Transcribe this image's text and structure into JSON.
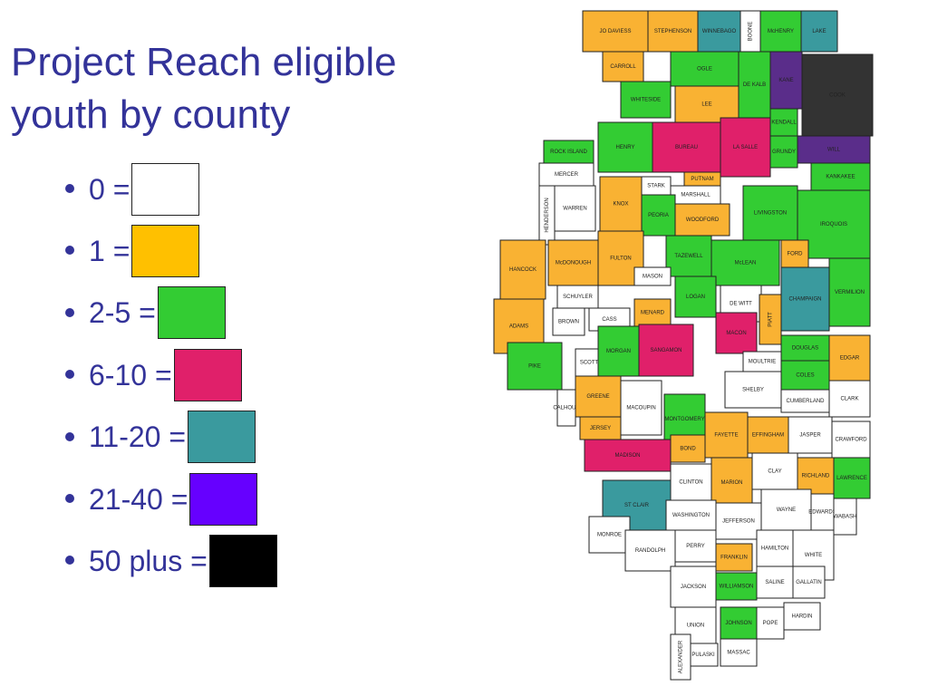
{
  "title": "Project Reach eligible youth by county",
  "legend": [
    {
      "label": "0 =",
      "color": "#ffffff"
    },
    {
      "label": "1 =",
      "color": "#ffc000"
    },
    {
      "label": "2-5 =",
      "color": "#33cc33"
    },
    {
      "label": "6-10 =",
      "color": "#e0206a"
    },
    {
      "label": "11-20 =",
      "color": "#3a9a9e"
    },
    {
      "label": "21-40 =",
      "color": "#6600ff"
    },
    {
      "label": "50 plus =",
      "color": "#000000"
    }
  ],
  "counties": [
    {
      "name": "JO DAVIESS",
      "color": "#f9b233"
    },
    {
      "name": "STEPHENSON",
      "color": "#f9b233"
    },
    {
      "name": "WINNEBAGO",
      "color": "#3a9a9e"
    },
    {
      "name": "BOONE",
      "color": "#ffffff"
    },
    {
      "name": "McHENRY",
      "color": "#33cc33"
    },
    {
      "name": "LAKE",
      "color": "#3a9a9e"
    },
    {
      "name": "CARROLL",
      "color": "#f9b233"
    },
    {
      "name": "OGLE",
      "color": "#33cc33"
    },
    {
      "name": "DE KALB",
      "color": "#33cc33"
    },
    {
      "name": "KANE",
      "color": "#5a2d8a"
    },
    {
      "name": "COOK",
      "color": "#333333"
    },
    {
      "name": "WHITESIDE",
      "color": "#33cc33"
    },
    {
      "name": "LEE",
      "color": "#f9b233"
    },
    {
      "name": "ROCK ISLAND",
      "color": "#33cc33"
    },
    {
      "name": "HENRY",
      "color": "#33cc33"
    },
    {
      "name": "BUREAU",
      "color": "#e0206a"
    },
    {
      "name": "LA SALLE",
      "color": "#e0206a"
    },
    {
      "name": "KENDALL",
      "color": "#33cc33"
    },
    {
      "name": "WILL",
      "color": "#5a2d8a"
    },
    {
      "name": "GRUNDY",
      "color": "#33cc33"
    },
    {
      "name": "MERCER",
      "color": "#ffffff"
    },
    {
      "name": "PUTNAM",
      "color": "#f9b233"
    },
    {
      "name": "KANKAKEE",
      "color": "#33cc33"
    },
    {
      "name": "KNOX",
      "color": "#f9b233"
    },
    {
      "name": "STARK",
      "color": "#ffffff"
    },
    {
      "name": "MARSHALL",
      "color": "#ffffff"
    },
    {
      "name": "WARREN",
      "color": "#ffffff"
    },
    {
      "name": "HENDERSON",
      "color": "#ffffff"
    },
    {
      "name": "PEORIA",
      "color": "#33cc33"
    },
    {
      "name": "WOODFORD",
      "color": "#f9b233"
    },
    {
      "name": "LIVINGSTON",
      "color": "#33cc33"
    },
    {
      "name": "IROQUOIS",
      "color": "#33cc33"
    },
    {
      "name": "HANCOCK",
      "color": "#f9b233"
    },
    {
      "name": "McDONOUGH",
      "color": "#f9b233"
    },
    {
      "name": "FULTON",
      "color": "#f9b233"
    },
    {
      "name": "TAZEWELL",
      "color": "#33cc33"
    },
    {
      "name": "McLEAN",
      "color": "#33cc33"
    },
    {
      "name": "FORD",
      "color": "#f9b233"
    },
    {
      "name": "VERMILION",
      "color": "#33cc33"
    },
    {
      "name": "MASON",
      "color": "#ffffff"
    },
    {
      "name": "CHAMPAIGN",
      "color": "#3a9a9e"
    },
    {
      "name": "ADAMS",
      "color": "#f9b233"
    },
    {
      "name": "SCHUYLER",
      "color": "#ffffff"
    },
    {
      "name": "BROWN",
      "color": "#ffffff"
    },
    {
      "name": "MENARD",
      "color": "#f9b233"
    },
    {
      "name": "LOGAN",
      "color": "#33cc33"
    },
    {
      "name": "DE WITT",
      "color": "#ffffff"
    },
    {
      "name": "CASS",
      "color": "#ffffff"
    },
    {
      "name": "PIATT",
      "color": "#f9b233"
    },
    {
      "name": "MACON",
      "color": "#e0206a"
    },
    {
      "name": "PIKE",
      "color": "#33cc33"
    },
    {
      "name": "SCOTT",
      "color": "#ffffff"
    },
    {
      "name": "MORGAN",
      "color": "#33cc33"
    },
    {
      "name": "SANGAMON",
      "color": "#e0206a"
    },
    {
      "name": "DOUGLAS",
      "color": "#33cc33"
    },
    {
      "name": "EDGAR",
      "color": "#f9b233"
    },
    {
      "name": "MOULTRIE",
      "color": "#ffffff"
    },
    {
      "name": "SHELBY",
      "color": "#ffffff"
    },
    {
      "name": "COLES",
      "color": "#33cc33"
    },
    {
      "name": "CALHOUN",
      "color": "#ffffff"
    },
    {
      "name": "GREENE",
      "color": "#f9b233"
    },
    {
      "name": "MACOUPIN",
      "color": "#ffffff"
    },
    {
      "name": "MONTGOMERY",
      "color": "#33cc33"
    },
    {
      "name": "CUMBERLAND",
      "color": "#ffffff"
    },
    {
      "name": "CLARK",
      "color": "#ffffff"
    },
    {
      "name": "JERSEY",
      "color": "#f9b233"
    },
    {
      "name": "FAYETTE",
      "color": "#f9b233"
    },
    {
      "name": "EFFINGHAM",
      "color": "#f9b233"
    },
    {
      "name": "JASPER",
      "color": "#ffffff"
    },
    {
      "name": "CRAWFORD",
      "color": "#ffffff"
    },
    {
      "name": "MADISON",
      "color": "#e0206a"
    },
    {
      "name": "BOND",
      "color": "#f9b233"
    },
    {
      "name": "CLAY",
      "color": "#ffffff"
    },
    {
      "name": "CLINTON",
      "color": "#ffffff"
    },
    {
      "name": "MARION",
      "color": "#f9b233"
    },
    {
      "name": "RICHLAND",
      "color": "#f9b233"
    },
    {
      "name": "LAWRENCE",
      "color": "#33cc33"
    },
    {
      "name": "ST CLAIR",
      "color": "#3a9a9e"
    },
    {
      "name": "WASHINGTON",
      "color": "#ffffff"
    },
    {
      "name": "JEFFERSON",
      "color": "#ffffff"
    },
    {
      "name": "WAYNE",
      "color": "#ffffff"
    },
    {
      "name": "EDWARDS",
      "color": "#ffffff"
    },
    {
      "name": "WABASH",
      "color": "#ffffff"
    },
    {
      "name": "MONROE",
      "color": "#ffffff"
    },
    {
      "name": "RANDOLPH",
      "color": "#ffffff"
    },
    {
      "name": "PERRY",
      "color": "#ffffff"
    },
    {
      "name": "FRANKLIN",
      "color": "#f9b233"
    },
    {
      "name": "HAMILTON",
      "color": "#ffffff"
    },
    {
      "name": "WHITE",
      "color": "#ffffff"
    },
    {
      "name": "JACKSON",
      "color": "#ffffff"
    },
    {
      "name": "WILLIAMSON",
      "color": "#33cc33"
    },
    {
      "name": "SALINE",
      "color": "#ffffff"
    },
    {
      "name": "GALLATIN",
      "color": "#ffffff"
    },
    {
      "name": "UNION",
      "color": "#ffffff"
    },
    {
      "name": "JOHNSON",
      "color": "#33cc33"
    },
    {
      "name": "POPE",
      "color": "#ffffff"
    },
    {
      "name": "HARDIN",
      "color": "#ffffff"
    },
    {
      "name": "PULASKI",
      "color": "#ffffff"
    },
    {
      "name": "MASSAC",
      "color": "#ffffff"
    },
    {
      "name": "ALEXANDER",
      "color": "#ffffff"
    }
  ]
}
